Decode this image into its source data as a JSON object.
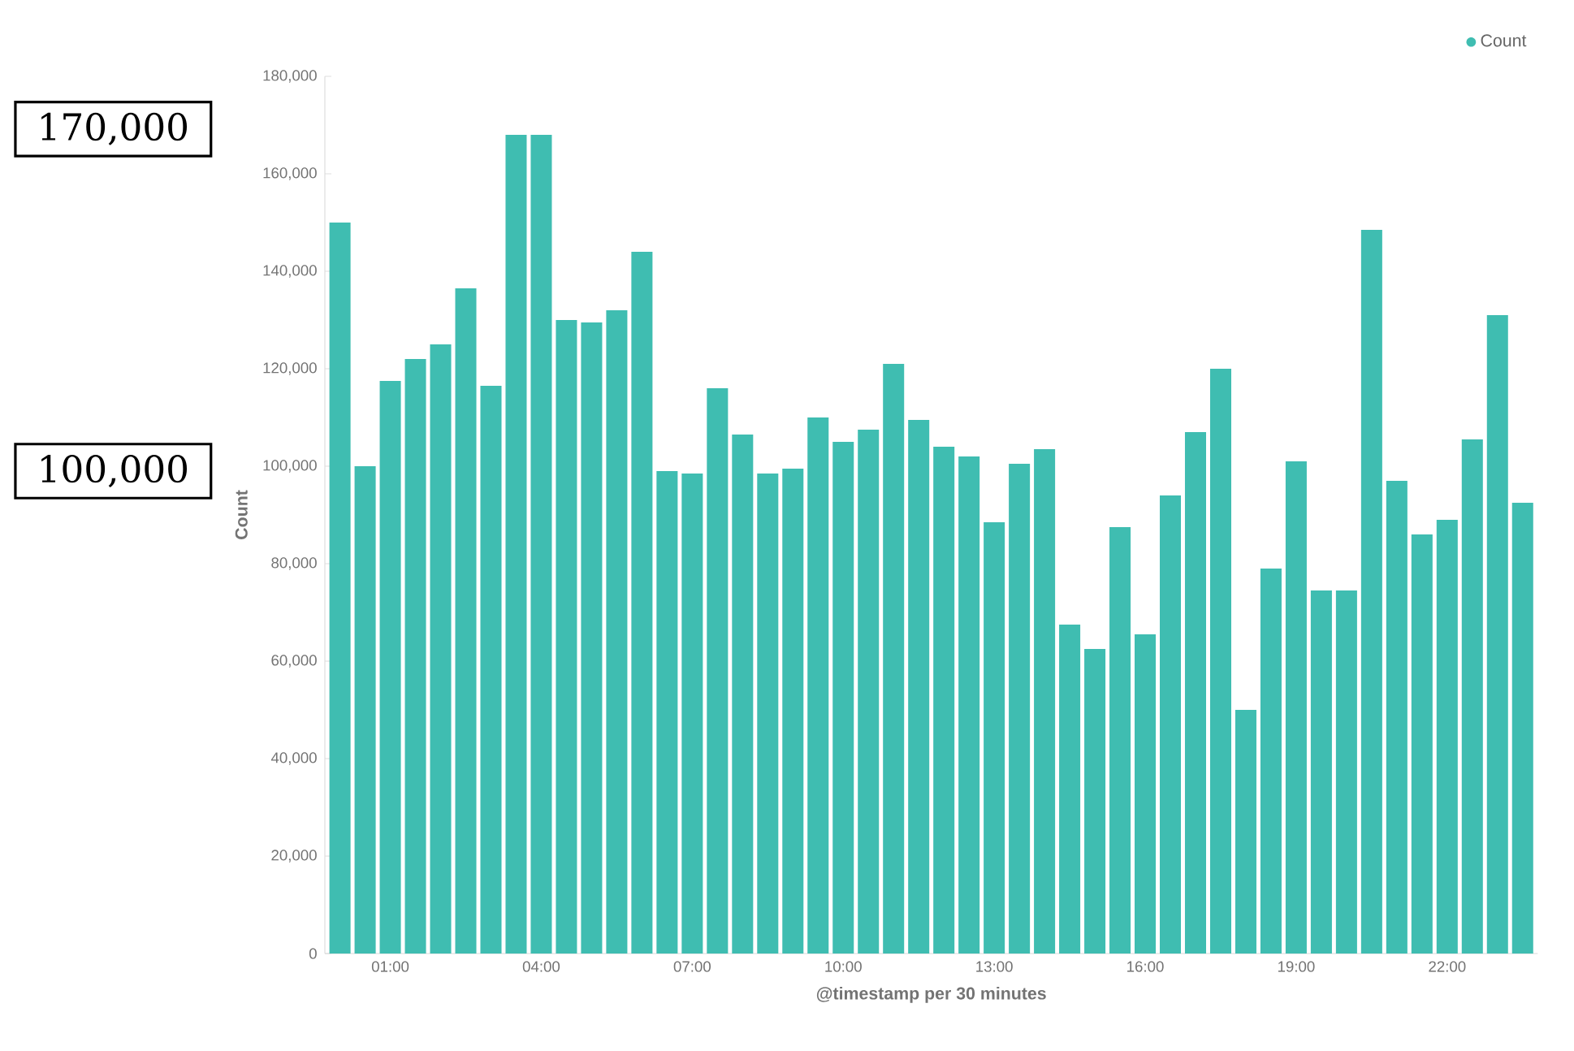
{
  "chart_data": {
    "type": "bar",
    "xlabel": "@timestamp per 30 minutes",
    "ylabel": "Count",
    "x": [
      0,
      0.5,
      1,
      1.5,
      2,
      2.5,
      3,
      3.5,
      4,
      4.5,
      5,
      5.5,
      6,
      6.5,
      7,
      7.5,
      8,
      8.5,
      9,
      9.5,
      10,
      10.5,
      11,
      11.5,
      12,
      12.5,
      13,
      13.5,
      14,
      14.5,
      15,
      15.5,
      16,
      16.5,
      17,
      17.5,
      18,
      18.5,
      19,
      19.5,
      20,
      20.5,
      21,
      21.5,
      22,
      22.5,
      23,
      23.5
    ],
    "series": [
      {
        "name": "Count",
        "color": "#3fbdb1",
        "values": [
          150000,
          100000,
          117500,
          122000,
          125000,
          136500,
          116500,
          168000,
          168000,
          130000,
          129500,
          132000,
          144000,
          99000,
          98500,
          116000,
          106500,
          98500,
          99500,
          110000,
          105000,
          107500,
          121000,
          109500,
          104000,
          102000,
          88500,
          100500,
          103500,
          67500,
          62500,
          87500,
          65500,
          94000,
          107000,
          120000,
          50000,
          79000,
          101000,
          74500,
          74500,
          148500,
          97000,
          86000,
          89000,
          105500,
          131000,
          92500
        ]
      }
    ],
    "xlim": [
      -0.3,
      23.8
    ],
    "xticks": [
      {
        "value": 1,
        "label": "01:00"
      },
      {
        "value": 4,
        "label": "04:00"
      },
      {
        "value": 7,
        "label": "07:00"
      },
      {
        "value": 10,
        "label": "10:00"
      },
      {
        "value": 13,
        "label": "13:00"
      },
      {
        "value": 16,
        "label": "16:00"
      },
      {
        "value": 19,
        "label": "19:00"
      },
      {
        "value": 22,
        "label": "22:00"
      }
    ],
    "ylim": [
      0,
      180000
    ],
    "yticks": [
      0,
      {
        "value": 20000,
        "label": "20,000"
      },
      {
        "value": 40000,
        "label": "40,000"
      },
      {
        "value": 60000,
        "label": "60,000"
      },
      {
        "value": 80000,
        "label": "80,000"
      },
      {
        "value": 100000,
        "label": "100,000"
      },
      {
        "value": 120000,
        "label": "120,000"
      },
      {
        "value": 140000,
        "label": "140,000"
      },
      {
        "value": 160000,
        "label": "160,000"
      },
      {
        "value": 180000,
        "label": "180,000"
      }
    ],
    "legend": "top right",
    "annotations": [
      "170,000",
      "100,000"
    ]
  }
}
